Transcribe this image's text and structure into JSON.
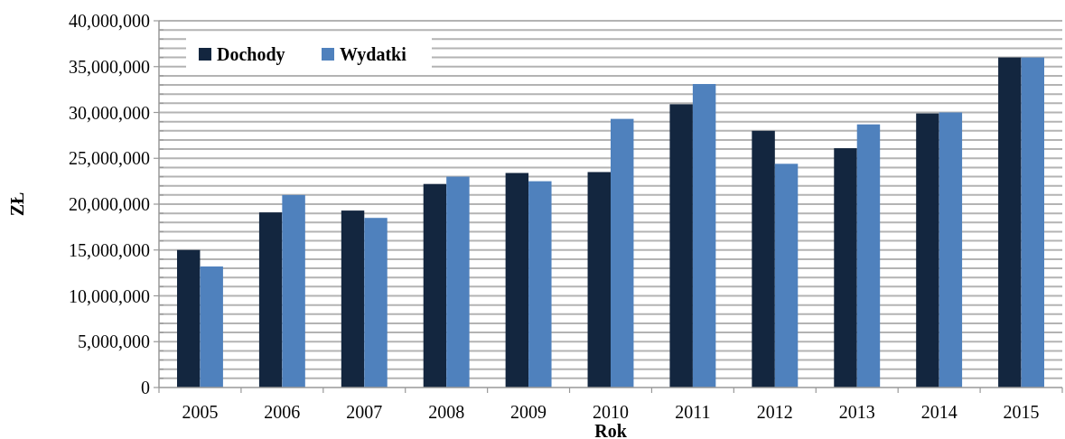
{
  "chart_data": {
    "type": "bar",
    "xlabel": "Rok",
    "ylabel": "ZŁ",
    "categories": [
      "2005",
      "2006",
      "2007",
      "2008",
      "2009",
      "2010",
      "2011",
      "2012",
      "2013",
      "2014",
      "2015"
    ],
    "series": [
      {
        "name": "Dochody",
        "color": "#13263f",
        "values": [
          15000000,
          19100000,
          19300000,
          22200000,
          23400000,
          23500000,
          30900000,
          28000000,
          26100000,
          29900000,
          36000000
        ]
      },
      {
        "name": "Wydatki",
        "color": "#4f81bd",
        "values": [
          13200000,
          21000000,
          18500000,
          23000000,
          22500000,
          29300000,
          33100000,
          24400000,
          28700000,
          30000000,
          36000000
        ]
      }
    ],
    "ylim": [
      0,
      40000000
    ],
    "yticks": [
      {
        "value": 0,
        "label": "0"
      },
      {
        "value": 1000000,
        "label": null
      },
      {
        "value": 2000000,
        "label": null
      },
      {
        "value": 3000000,
        "label": null
      },
      {
        "value": 4000000,
        "label": null
      },
      {
        "value": 5000000,
        "label": "5,000,000"
      },
      {
        "value": 6000000,
        "label": null
      },
      {
        "value": 7000000,
        "label": null
      },
      {
        "value": 8000000,
        "label": null
      },
      {
        "value": 9000000,
        "label": null
      },
      {
        "value": 10000000,
        "label": "10,000,000"
      },
      {
        "value": 11000000,
        "label": null
      },
      {
        "value": 12000000,
        "label": null
      },
      {
        "value": 13000000,
        "label": null
      },
      {
        "value": 14000000,
        "label": null
      },
      {
        "value": 15000000,
        "label": "15,000,000"
      },
      {
        "value": 16000000,
        "label": null
      },
      {
        "value": 17000000,
        "label": null
      },
      {
        "value": 18000000,
        "label": null
      },
      {
        "value": 19000000,
        "label": null
      },
      {
        "value": 20000000,
        "label": "20,000,000"
      },
      {
        "value": 21000000,
        "label": null
      },
      {
        "value": 22000000,
        "label": null
      },
      {
        "value": 23000000,
        "label": null
      },
      {
        "value": 24000000,
        "label": null
      },
      {
        "value": 25000000,
        "label": "25,000,000"
      },
      {
        "value": 26000000,
        "label": null
      },
      {
        "value": 27000000,
        "label": null
      },
      {
        "value": 28000000,
        "label": null
      },
      {
        "value": 29000000,
        "label": null
      },
      {
        "value": 30000000,
        "label": "30,000,000"
      },
      {
        "value": 31000000,
        "label": null
      },
      {
        "value": 32000000,
        "label": null
      },
      {
        "value": 33000000,
        "label": null
      },
      {
        "value": 34000000,
        "label": null
      },
      {
        "value": 35000000,
        "label": "35,000,000"
      },
      {
        "value": 36000000,
        "label": null
      },
      {
        "value": 37000000,
        "label": null
      },
      {
        "value": 38000000,
        "label": null
      },
      {
        "value": 39000000,
        "label": null
      },
      {
        "value": 40000000,
        "label": "40,000,000"
      }
    ],
    "grid": "y",
    "legend": "top left"
  }
}
